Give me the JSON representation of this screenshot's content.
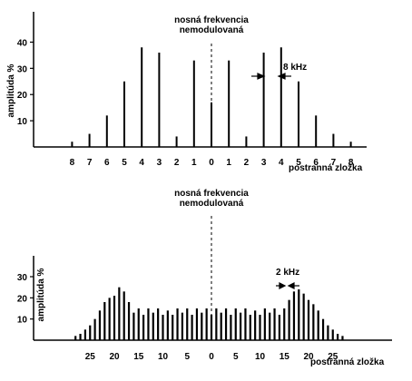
{
  "chart_data": [
    {
      "type": "bar",
      "title": "nosná frekvencia nemodulovaná",
      "title_lines": [
        "nosná frekvencia",
        "nemodulovaná"
      ],
      "ylabel": "amplitúda %",
      "xlabel": "postranná zložka",
      "ylim": [
        0,
        45
      ],
      "y_ticks": [
        10,
        20,
        30,
        40
      ],
      "x_tick_labels": [
        "8",
        "7",
        "6",
        "5",
        "4",
        "3",
        "2",
        "1",
        "0",
        "1",
        "2",
        "3",
        "4",
        "5",
        "6",
        "7",
        "8"
      ],
      "annotation": "8 kHz",
      "carrier_index": 0,
      "components": [
        {
          "k": -8,
          "amplitude": 2
        },
        {
          "k": -7,
          "amplitude": 5
        },
        {
          "k": -6,
          "amplitude": 12
        },
        {
          "k": -5,
          "amplitude": 25
        },
        {
          "k": -4,
          "amplitude": 38
        },
        {
          "k": -3,
          "amplitude": 36
        },
        {
          "k": -2,
          "amplitude": 4
        },
        {
          "k": -1,
          "amplitude": 33
        },
        {
          "k": 0,
          "amplitude": 17
        },
        {
          "k": 1,
          "amplitude": 33
        },
        {
          "k": 2,
          "amplitude": 4
        },
        {
          "k": 3,
          "amplitude": 36
        },
        {
          "k": 4,
          "amplitude": 38
        },
        {
          "k": 5,
          "amplitude": 25
        },
        {
          "k": 6,
          "amplitude": 12
        },
        {
          "k": 7,
          "amplitude": 5
        },
        {
          "k": 8,
          "amplitude": 2
        }
      ],
      "legend": "none",
      "grid": false
    },
    {
      "type": "bar",
      "title": "nosná frekvencia nemodulovaná",
      "title_lines": [
        "nosná frekvencia",
        "nemodulovaná"
      ],
      "ylabel": "amplitúda %",
      "xlabel": "postranná zložka",
      "ylim": [
        0,
        35
      ],
      "y_ticks": [
        10,
        20,
        30
      ],
      "x_tick_labels": [
        "25",
        "20",
        "15",
        "10",
        "5",
        "0",
        "5",
        "10",
        "15",
        "20",
        "25"
      ],
      "annotation": "2 kHz",
      "components": [
        {
          "k": -28,
          "amplitude": 2
        },
        {
          "k": -27,
          "amplitude": 3
        },
        {
          "k": -26,
          "amplitude": 5
        },
        {
          "k": -25,
          "amplitude": 7
        },
        {
          "k": -24,
          "amplitude": 10
        },
        {
          "k": -23,
          "amplitude": 14
        },
        {
          "k": -22,
          "amplitude": 18
        },
        {
          "k": -21,
          "amplitude": 20
        },
        {
          "k": -20,
          "amplitude": 21
        },
        {
          "k": -19,
          "amplitude": 25
        },
        {
          "k": -18,
          "amplitude": 23
        },
        {
          "k": -17,
          "amplitude": 18
        },
        {
          "k": -16,
          "amplitude": 13
        },
        {
          "k": -15,
          "amplitude": 15
        },
        {
          "k": -14,
          "amplitude": 12
        },
        {
          "k": -13,
          "amplitude": 15
        },
        {
          "k": -12,
          "amplitude": 13
        },
        {
          "k": -11,
          "amplitude": 15
        },
        {
          "k": -10,
          "amplitude": 12
        },
        {
          "k": -9,
          "amplitude": 14
        },
        {
          "k": -8,
          "amplitude": 12
        },
        {
          "k": -7,
          "amplitude": 15
        },
        {
          "k": -6,
          "amplitude": 13
        },
        {
          "k": -5,
          "amplitude": 15
        },
        {
          "k": -4,
          "amplitude": 12
        },
        {
          "k": -3,
          "amplitude": 15
        },
        {
          "k": -2,
          "amplitude": 13
        },
        {
          "k": -1,
          "amplitude": 15
        },
        {
          "k": 0,
          "amplitude": 12
        },
        {
          "k": 1,
          "amplitude": 15
        },
        {
          "k": 2,
          "amplitude": 13
        },
        {
          "k": 3,
          "amplitude": 15
        },
        {
          "k": 4,
          "amplitude": 12
        },
        {
          "k": 5,
          "amplitude": 15
        },
        {
          "k": 6,
          "amplitude": 13
        },
        {
          "k": 7,
          "amplitude": 15
        },
        {
          "k": 8,
          "amplitude": 12
        },
        {
          "k": 9,
          "amplitude": 14
        },
        {
          "k": 10,
          "amplitude": 12
        },
        {
          "k": 11,
          "amplitude": 15
        },
        {
          "k": 12,
          "amplitude": 13
        },
        {
          "k": 13,
          "amplitude": 15
        },
        {
          "k": 14,
          "amplitude": 12
        },
        {
          "k": 15,
          "amplitude": 15
        },
        {
          "k": 16,
          "amplitude": 19
        },
        {
          "k": 17,
          "amplitude": 23
        },
        {
          "k": 18,
          "amplitude": 24
        },
        {
          "k": 19,
          "amplitude": 22
        },
        {
          "k": 20,
          "amplitude": 19
        },
        {
          "k": 21,
          "amplitude": 17
        },
        {
          "k": 22,
          "amplitude": 14
        },
        {
          "k": 23,
          "amplitude": 10
        },
        {
          "k": 24,
          "amplitude": 7
        },
        {
          "k": 25,
          "amplitude": 5
        },
        {
          "k": 26,
          "amplitude": 3
        },
        {
          "k": 27,
          "amplitude": 2
        }
      ],
      "legend": "none",
      "grid": false
    }
  ]
}
